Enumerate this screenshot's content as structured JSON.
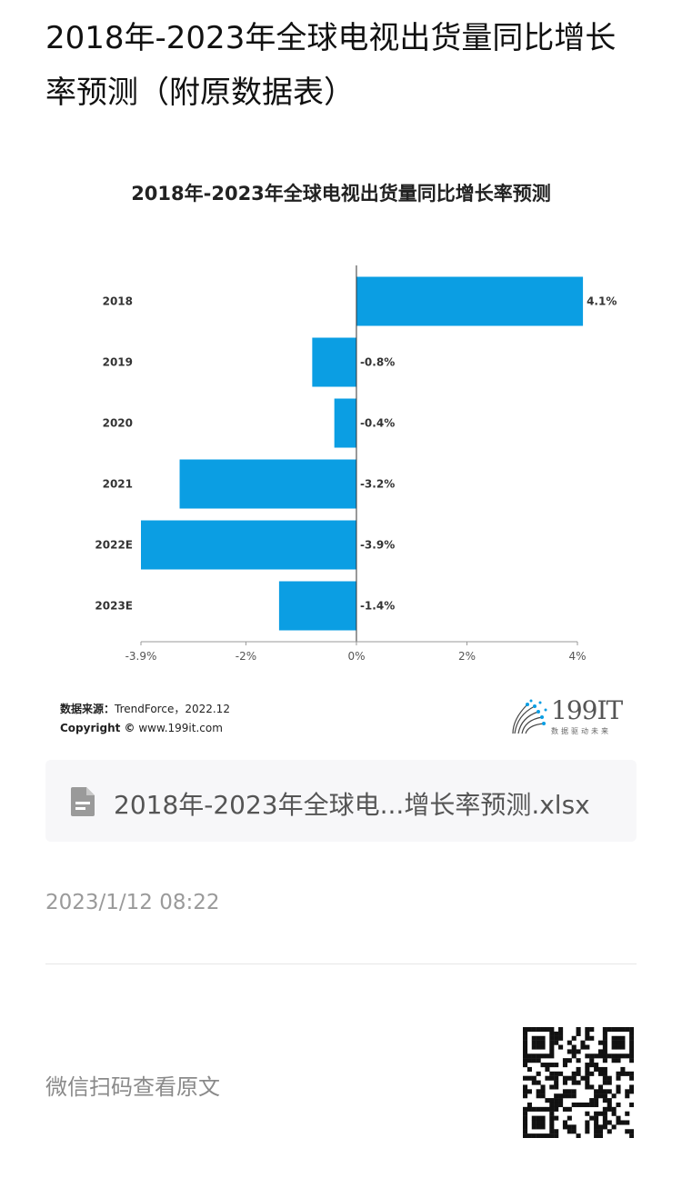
{
  "page": {
    "title": "2018年-2023年全球电视出货量同比增长率预测（附原数据表）",
    "attachment_name": "2018年-2023年全球电...增长率预测.xlsx",
    "timestamp": "2023/1/12 08:22",
    "scan_text": "微信扫码查看原文"
  },
  "chart_data": {
    "type": "bar",
    "orientation": "horizontal",
    "title": "2018年-2023年全球电视出货量同比增长率预测",
    "categories": [
      "2018",
      "2019",
      "2020",
      "2021",
      "2022E",
      "2023E"
    ],
    "values": [
      4.1,
      -0.8,
      -0.4,
      -3.2,
      -3.9,
      -1.4
    ],
    "value_labels": [
      "4.1%",
      "-0.8%",
      "-0.4%",
      "-3.2%",
      "-3.9%",
      "-1.4%"
    ],
    "x_ticks": [
      -3.9,
      -2,
      0,
      2,
      4
    ],
    "x_tick_labels": [
      "-3.9%",
      "-2%",
      "0%",
      "2%",
      "4%"
    ],
    "xlim": [
      -3.9,
      4
    ],
    "bar_color": "#0b9ee3",
    "grid": false
  },
  "footer": {
    "source_label": "数据来源：",
    "source_value": "TrendForce，2022.12",
    "copyright_label": "Copyright ©",
    "copyright_value": " www.199it.com"
  },
  "brand": {
    "name": "199IT",
    "tagline": "数据驱动未来"
  }
}
